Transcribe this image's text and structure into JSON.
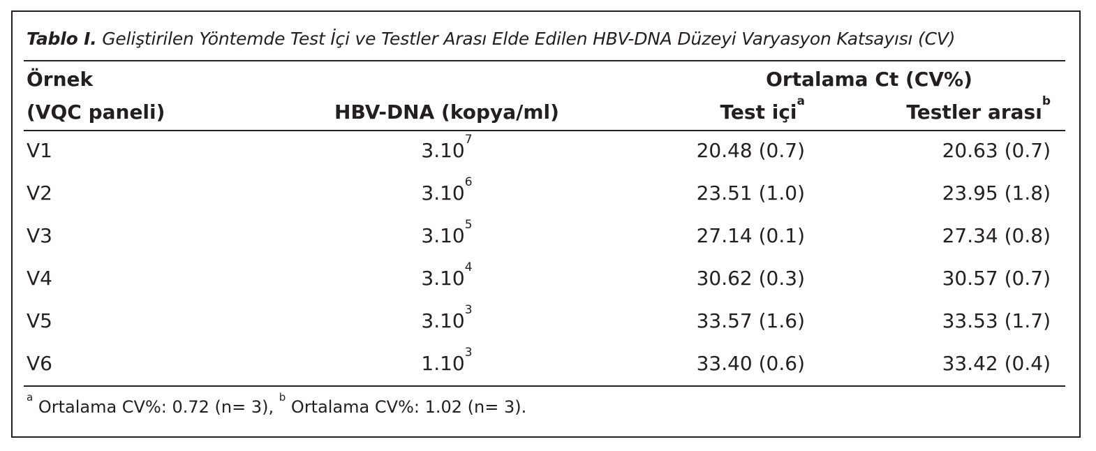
{
  "caption": {
    "lead": "Tablo I.",
    "text": "Geliştirilen Yöntemde Test İçi ve Testler Arası Elde Edilen HBV-DNA Düzeyi Varyasyon Katsayısı (CV)"
  },
  "header": {
    "sample_line1": "Örnek",
    "sample_line2": "(VQC paneli)",
    "hbv_dna": "HBV-DNA (kopya/ml)",
    "mean_ct": "Ortalama Ct (CV%)",
    "intra": "Test içi",
    "intra_mark": "a",
    "inter": "Testler arası",
    "inter_mark": "b"
  },
  "rows": [
    {
      "sample": "V1",
      "base": "3.10",
      "exp": "7",
      "intra": "20.48 (0.7)",
      "inter": "20.63 (0.7)"
    },
    {
      "sample": "V2",
      "base": "3.10",
      "exp": "6",
      "intra": "23.51 (1.0)",
      "inter": "23.95 (1.8)"
    },
    {
      "sample": "V3",
      "base": "3.10",
      "exp": "5",
      "intra": "27.14 (0.1)",
      "inter": "27.34 (0.8)"
    },
    {
      "sample": "V4",
      "base": "3.10",
      "exp": "4",
      "intra": "30.62 (0.3)",
      "inter": "30.57 (0.7)"
    },
    {
      "sample": "V5",
      "base": "3.10",
      "exp": "3",
      "intra": "33.57 (1.6)",
      "inter": "33.53 (1.7)"
    },
    {
      "sample": "V6",
      "base": "1.10",
      "exp": "3",
      "intra": "33.40 (0.6)",
      "inter": "33.42 (0.4)"
    }
  ],
  "footnote": {
    "mark_a": "a",
    "text_a": " Ortalama CV%: 0.72 (n= 3), ",
    "mark_b": "b",
    "text_b": " Ortalama CV%: 1.02 (n= 3)."
  }
}
